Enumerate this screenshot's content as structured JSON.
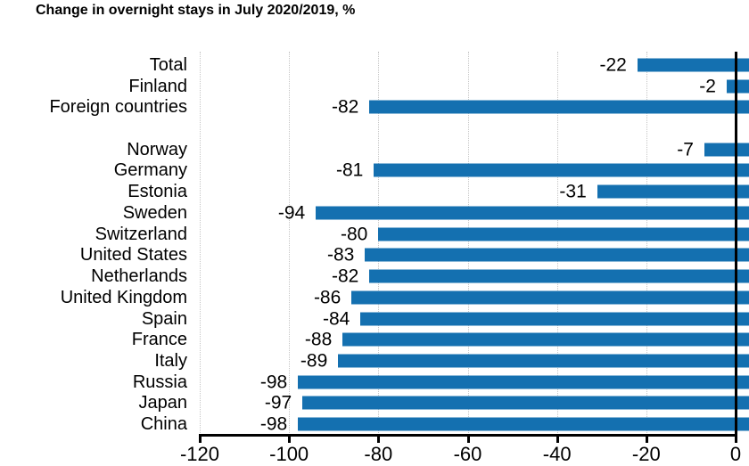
{
  "title": "Change in overnight stays in July 2020/2019, %",
  "chart_data": {
    "type": "bar",
    "orientation": "horizontal",
    "title": "Change in overnight stays in July 2020/2019, %",
    "xlabel": "",
    "ylabel": "",
    "xlim": [
      -120,
      0
    ],
    "x_ticks": [
      -120,
      -100,
      -80,
      -60,
      -40,
      -20,
      0
    ],
    "grid": "dotted-vertical",
    "legend": "none",
    "bar_color": "#1470b0",
    "axis_color": "#000000",
    "gridline_color": "#c6c6c6",
    "rows": [
      {
        "label": "Total",
        "value": -22,
        "value_label": "-22"
      },
      {
        "label": "Finland",
        "value": -2,
        "value_label": "-2"
      },
      {
        "label": "Foreign countries",
        "value": -82,
        "value_label": "-82"
      },
      {
        "label": "",
        "value": null,
        "value_label": "",
        "spacer": true
      },
      {
        "label": "Norway",
        "value": -7,
        "value_label": "-7"
      },
      {
        "label": "Germany",
        "value": -81,
        "value_label": "-81"
      },
      {
        "label": "Estonia",
        "value": -31,
        "value_label": "-31"
      },
      {
        "label": "Sweden",
        "value": -94,
        "value_label": "-94"
      },
      {
        "label": "Switzerland",
        "value": -80,
        "value_label": "-80"
      },
      {
        "label": "United States",
        "value": -83,
        "value_label": "-83"
      },
      {
        "label": "Netherlands",
        "value": -82,
        "value_label": "-82"
      },
      {
        "label": "United Kingdom",
        "value": -86,
        "value_label": "-86"
      },
      {
        "label": "Spain",
        "value": -84,
        "value_label": "-84"
      },
      {
        "label": "France",
        "value": -88,
        "value_label": "-88"
      },
      {
        "label": "Italy",
        "value": -89,
        "value_label": "-89"
      },
      {
        "label": "Russia",
        "value": -98,
        "value_label": "-98"
      },
      {
        "label": "Japan",
        "value": -97,
        "value_label": "-97"
      },
      {
        "label": "China",
        "value": -98,
        "value_label": "-98"
      }
    ]
  }
}
